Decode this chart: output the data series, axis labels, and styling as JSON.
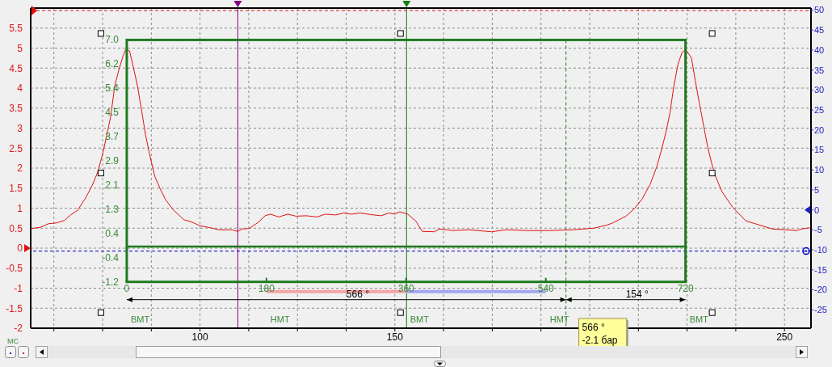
{
  "chart_data": {
    "type": "line",
    "x": [
      56.6,
      59.0,
      61.05,
      63.1,
      65.15,
      66.8,
      68.6,
      70.6,
      72.3,
      73.7,
      75.05,
      76.1,
      77.1,
      78.1,
      79.15,
      80.2,
      80.9,
      81.9,
      82.9,
      83.95,
      85.0,
      86.0,
      87.0,
      88.4,
      89.75,
      91.1,
      93.2,
      95.9,
      97.95,
      100.0,
      102.7,
      104.8,
      108.2,
      109.6,
      110.9,
      112.6,
      115.0,
      116.7,
      118.1,
      120.15,
      122.55,
      124.6,
      127.3,
      130.1,
      132.1,
      134.85,
      136.9,
      138.95,
      141.0,
      143.7,
      146.5,
      148.5,
      149.9,
      151.25,
      153.3,
      155.35,
      157.05,
      160.1,
      161.5,
      164.9,
      169.0,
      174.8,
      178.6,
      184.05,
      189.5,
      195.7,
      201.1,
      204.55,
      205.9,
      209.3,
      211.4,
      213.4,
      215.5,
      217.2,
      218.55,
      219.6,
      220.6,
      221.6,
      222.65,
      223.7,
      224.65,
      226.1,
      227.1,
      228.1,
      229.15,
      230.2,
      231.2,
      232.2,
      233.9,
      236.7,
      240.1,
      243.5,
      246.9,
      250.3,
      253.1,
      254.4,
      256.5
    ],
    "series": [
      {
        "color": "#e01010",
        "values": [
          0.49,
          0.52,
          0.61,
          0.63,
          0.69,
          0.83,
          0.95,
          1.25,
          1.56,
          1.89,
          2.37,
          2.84,
          3.31,
          4.05,
          4.45,
          4.79,
          4.96,
          4.93,
          4.52,
          4.05,
          3.44,
          2.84,
          2.37,
          1.79,
          1.49,
          1.22,
          0.95,
          0.71,
          0.65,
          0.56,
          0.51,
          0.46,
          0.46,
          0.42,
          0.48,
          0.49,
          0.65,
          0.81,
          0.85,
          0.78,
          0.85,
          0.8,
          0.81,
          0.78,
          0.85,
          0.83,
          0.88,
          0.85,
          0.88,
          0.84,
          0.81,
          0.88,
          0.85,
          0.91,
          0.85,
          0.68,
          0.42,
          0.41,
          0.48,
          0.44,
          0.46,
          0.41,
          0.46,
          0.44,
          0.44,
          0.46,
          0.5,
          0.58,
          0.63,
          0.8,
          0.98,
          1.22,
          1.59,
          2.03,
          2.5,
          2.91,
          3.38,
          4.05,
          4.59,
          4.89,
          4.96,
          4.76,
          4.19,
          3.65,
          3.11,
          2.57,
          2.16,
          1.82,
          1.42,
          1.02,
          0.68,
          0.58,
          0.48,
          0.46,
          0.44,
          0.48,
          0.51
        ]
      }
    ],
    "xlim": [
      56.54,
      256.8
    ],
    "xticks": [
      {
        "value": 62.5,
        "label": null
      },
      {
        "value": 75,
        "label": null
      },
      {
        "value": 87.5,
        "label": null
      },
      100,
      {
        "value": 112.5,
        "label": null
      },
      {
        "value": 125,
        "label": null
      },
      {
        "value": 137.5,
        "label": null
      },
      150,
      {
        "value": 162.5,
        "label": null
      },
      {
        "value": 175,
        "label": null
      },
      {
        "value": 187.5,
        "label": null
      },
      {
        "value": 200,
        "label": null
      },
      {
        "value": 212.5,
        "label": null
      },
      {
        "value": 225,
        "label": null
      },
      {
        "value": 237.5,
        "label": null
      },
      250
    ],
    "ylim": [
      -2,
      6
    ],
    "yticks": [
      -2,
      -1.5,
      -1,
      -0.5,
      0,
      0.5,
      1,
      1.5,
      2,
      2.5,
      3,
      3.5,
      4,
      4.5,
      5,
      5.5
    ],
    "y2lim": [
      -29.6,
      50.5
    ],
    "y2ticks": [
      -25,
      -20,
      -15,
      -10,
      -5,
      0,
      5,
      10,
      15,
      20,
      25,
      30,
      35,
      40,
      45,
      50
    ],
    "x2lim": [
      -123.8,
      881.7
    ],
    "x2ticks": [
      0,
      180,
      360,
      540,
      720
    ],
    "y3lim": [
      -2.77,
      8.08
    ],
    "y3ticks": [
      -1.2,
      {
        "value": -0.38,
        "label": "-0.4"
      },
      {
        "value": 0.44,
        "label": "0.4"
      },
      {
        "value": 1.26,
        "label": "1.3"
      },
      {
        "value": 2.08,
        "label": "2.1"
      },
      2.9,
      {
        "value": 3.72,
        "label": "3.7"
      },
      {
        "value": 4.54,
        "label": "4.5"
      },
      {
        "value": 5.36,
        "label": "5.4"
      },
      {
        "value": 6.18,
        "label": "6.2"
      },
      {
        "value": 7,
        "label": "7.0"
      }
    ],
    "grid": true,
    "ref_lines": [
      {
        "axis": "x",
        "value": 109.7,
        "color": "#800080"
      },
      {
        "axis": "x",
        "value": 153.0,
        "color": "#108010"
      },
      {
        "axis": "y",
        "value": 5.94,
        "color": "#e01010",
        "line_style": "dashed"
      },
      {
        "axis": "y2",
        "value": -10.3,
        "color": "#0000c0",
        "line_style": "dashed"
      },
      {
        "axis": "y3",
        "value": 0,
        "color": "#1e7b1e"
      },
      {
        "axis": "x2",
        "value": 566,
        "color": "#1e7b1e",
        "line_style": "dashed"
      }
    ],
    "annotations": [
      "566 °",
      "154 °",
      "ВМТ",
      "НМТ",
      "ВМТ",
      "НМТ",
      "ВМТ",
      {
        "text": "566 °\n-2.1 бар",
        "x": 193.9,
        "y": -2
      },
      "MC"
    ]
  }
}
